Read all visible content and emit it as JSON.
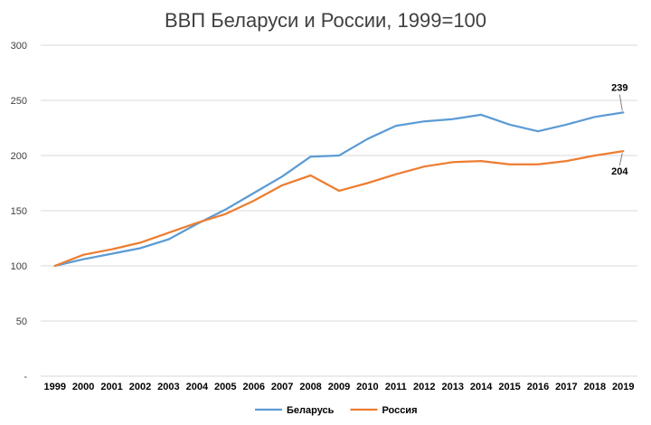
{
  "chart_data": {
    "type": "line",
    "title": "ВВП Беларуси и России, 1999=100",
    "categories": [
      "1999",
      "2000",
      "2001",
      "2002",
      "2003",
      "2004",
      "2005",
      "2006",
      "2007",
      "2008",
      "2009",
      "2010",
      "2011",
      "2012",
      "2013",
      "2014",
      "2015",
      "2016",
      "2017",
      "2018",
      "2019"
    ],
    "y_tick_labels": [
      "-",
      "50",
      "100",
      "150",
      "200",
      "250",
      "300"
    ],
    "ylim": [
      0,
      300
    ],
    "grid": true,
    "legend_position": "bottom",
    "series": [
      {
        "name": "Беларусь",
        "color": "#5b9bd5",
        "values": [
          100,
          106,
          111,
          116,
          124,
          138,
          151,
          166,
          181,
          199,
          200,
          215,
          227,
          231,
          233,
          237,
          228,
          222,
          228,
          235,
          239
        ]
      },
      {
        "name": "Россия",
        "color": "#ed7d31",
        "values": [
          100,
          110,
          115,
          121,
          130,
          139,
          147,
          159,
          173,
          182,
          168,
          175,
          183,
          190,
          194,
          195,
          192,
          192,
          195,
          200,
          204
        ]
      }
    ],
    "data_labels": [
      {
        "series": 0,
        "index": 20,
        "text": "239"
      },
      {
        "series": 1,
        "index": 20,
        "text": "204"
      }
    ]
  }
}
